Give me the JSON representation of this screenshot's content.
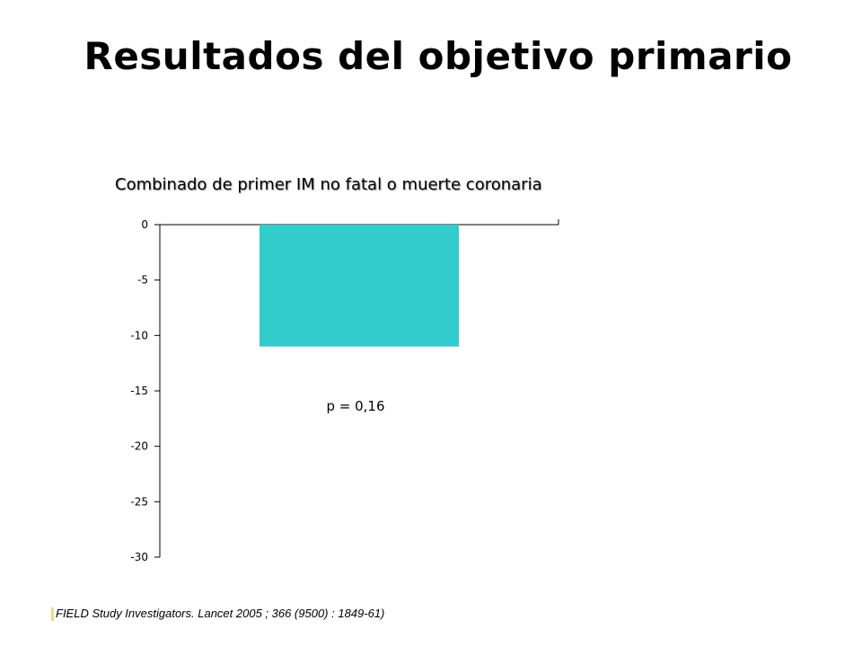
{
  "title": "Resultados del objetivo primario",
  "citation": "FIELD Study Investigators. Lancet 2005 ; 366 (9500) : 1849-61)",
  "chart_data": {
    "type": "bar",
    "title": "Combinado de primer IM no fatal o muerte coronaria",
    "categories": [
      ""
    ],
    "values": [
      -11
    ],
    "ylim": [
      -30,
      0
    ],
    "yticks": [
      0,
      -5,
      -10,
      -15,
      -20,
      -25,
      -30
    ],
    "ytick_labels": [
      "0",
      "-5",
      "-10",
      "-15",
      "-20",
      "-25",
      "-30"
    ],
    "annotation": "p = 0,16",
    "bar_color": "#33cccc",
    "grid": false,
    "xlabel": "",
    "ylabel": ""
  }
}
